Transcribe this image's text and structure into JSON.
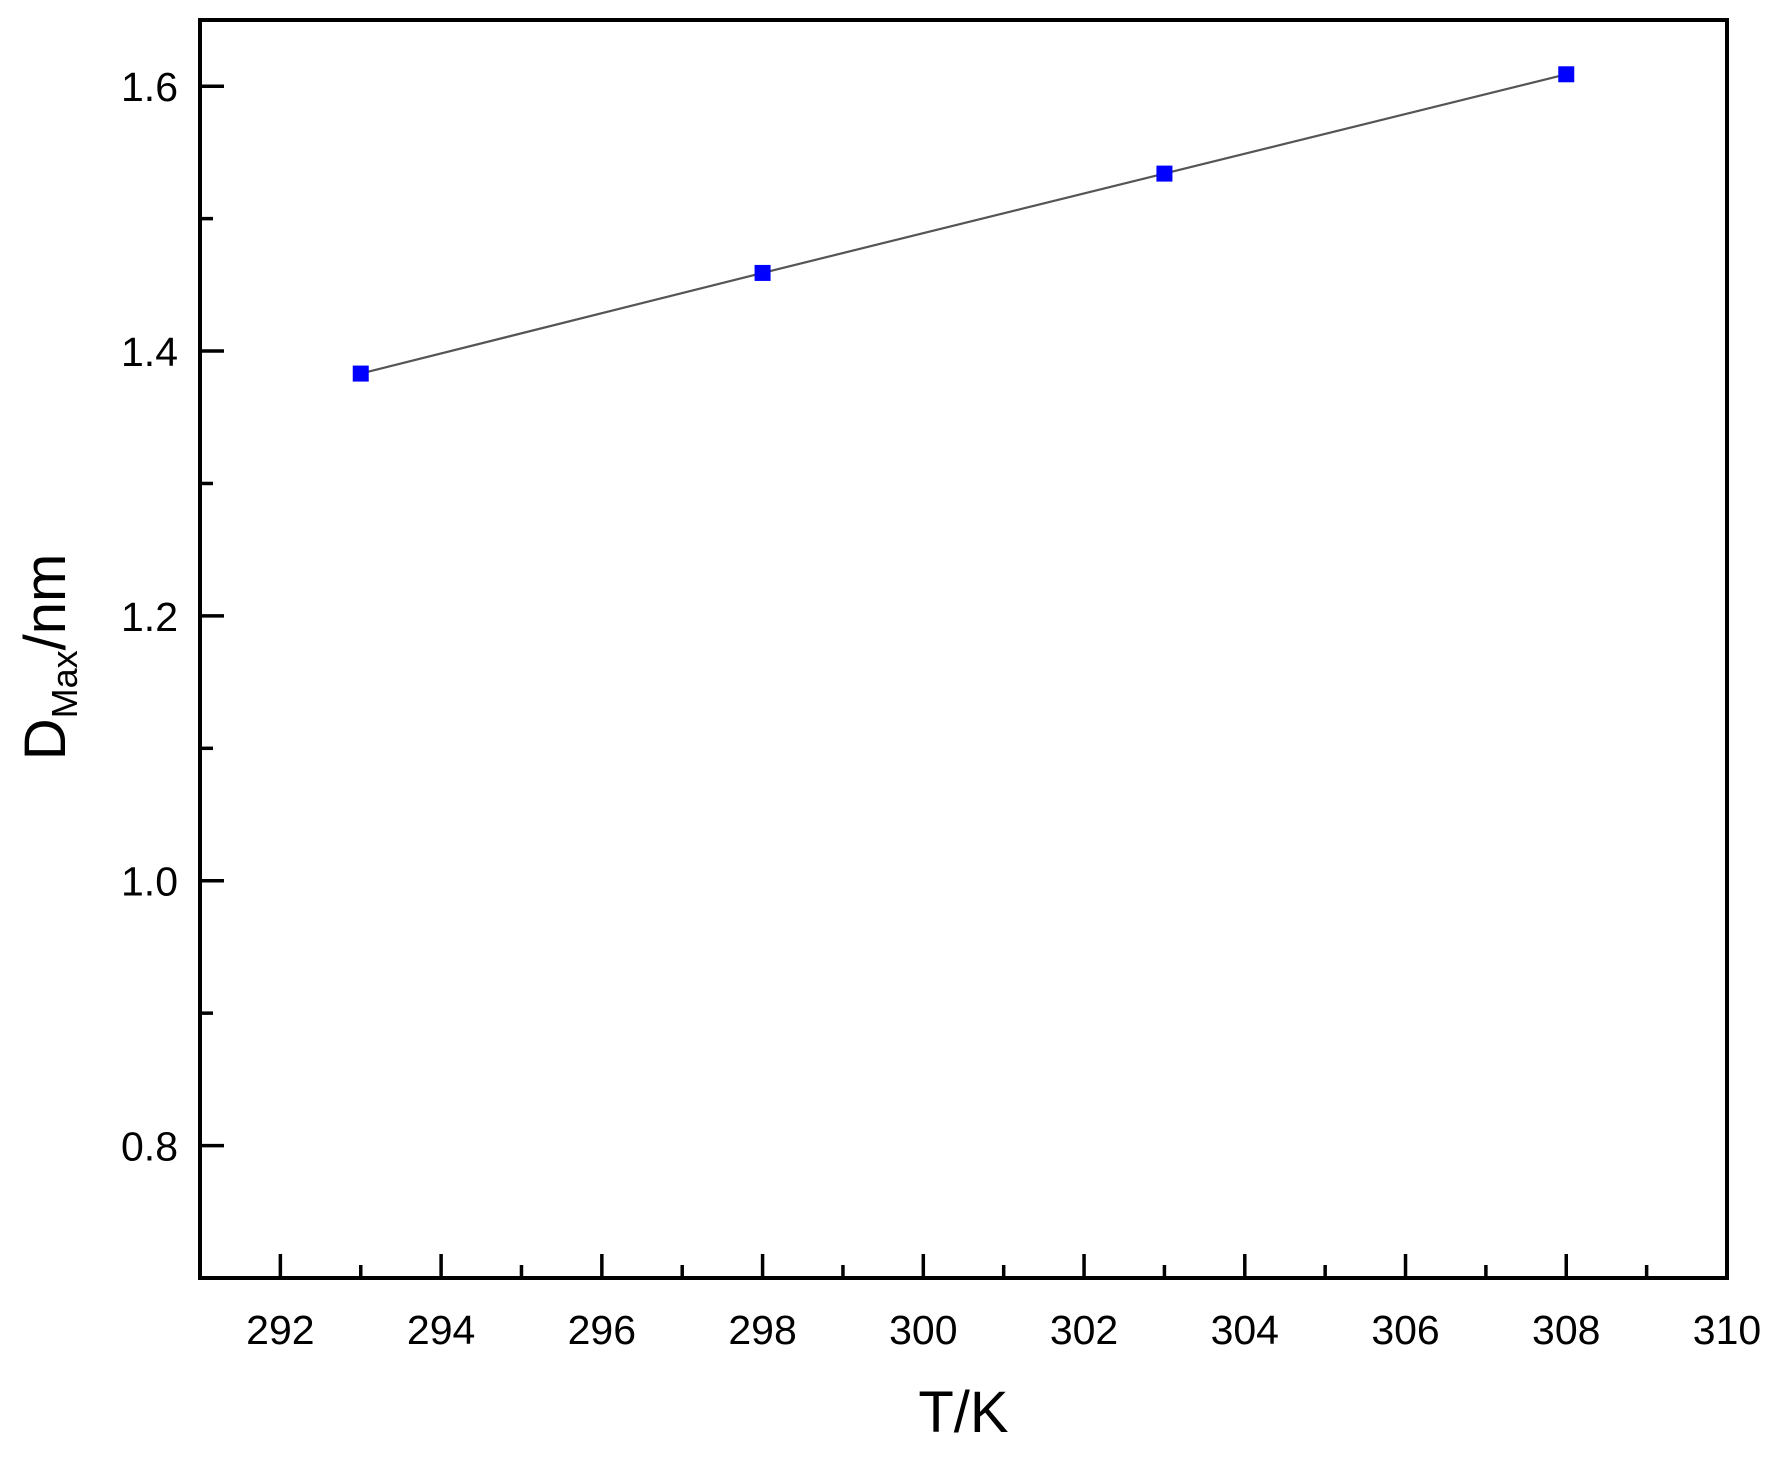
{
  "chart_data": {
    "type": "line",
    "xlabel": "T/K",
    "ylabel": {
      "main": "D",
      "sub": "Max",
      "suffix": "/nm"
    },
    "xlim": [
      291,
      310
    ],
    "ylim": [
      0.7,
      1.65
    ],
    "x_ticks": [
      "292",
      "294",
      "296",
      "298",
      "300",
      "302",
      "304",
      "306",
      "308",
      "310"
    ],
    "y_ticks": [
      "0.8",
      "1.0",
      "1.2",
      "1.4",
      "1.6"
    ],
    "grid": false,
    "legend": "none",
    "series": [
      {
        "x": [
          293,
          298,
          303,
          308
        ],
        "y": [
          1.383,
          1.459,
          1.534,
          1.609
        ],
        "marker": "square",
        "marker_color": "#0000ff",
        "line_color": "#555555"
      }
    ]
  }
}
